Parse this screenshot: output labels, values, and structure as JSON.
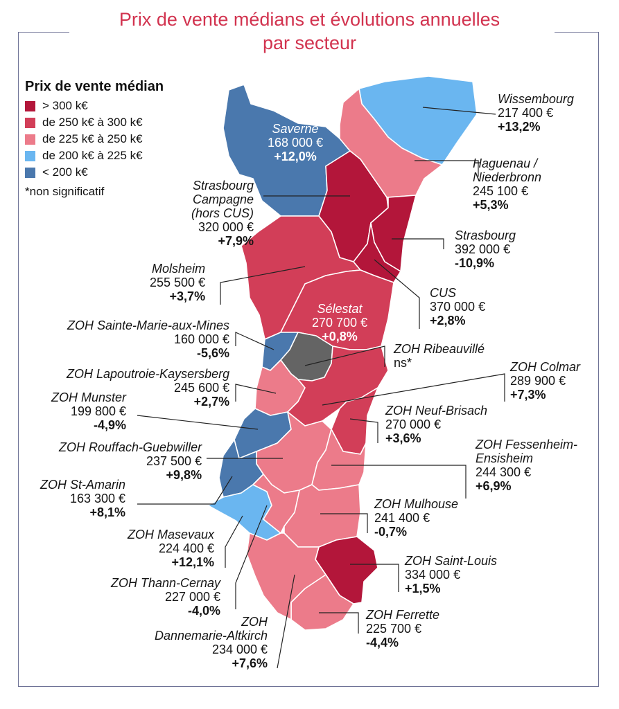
{
  "title": [
    "Prix de vente médians et évolutions annuelles",
    "par secteur"
  ],
  "legend": {
    "title": "Prix de vente médian",
    "items": [
      {
        "label": "> 300 k€",
        "color": "#b3163a"
      },
      {
        "label": "de 250 k€ à 300 k€",
        "color": "#d23e58"
      },
      {
        "label": "de 225 k€ à 250 k€",
        "color": "#ec7b8a"
      },
      {
        "label": "de 200 k€ à 225 k€",
        "color": "#6ab6f0"
      },
      {
        "label": "< 200 k€",
        "color": "#4a78ad"
      }
    ],
    "note": "*non significatif"
  },
  "colors": {
    "ns": "#646464",
    "border": "#ffffff",
    "leader": "#222222"
  },
  "sectors": [
    {
      "key": "saverne",
      "name": [
        "Saverne"
      ],
      "price": "168 000 €",
      "change": "+12,0%",
      "class": "< 200 k€"
    },
    {
      "key": "wissembourg",
      "name": [
        "Wissembourg"
      ],
      "price": "217 400 €",
      "change": "+13,2%",
      "class": "de 200 k€ à 225 k€"
    },
    {
      "key": "haguenau",
      "name": [
        "Haguenau /",
        "Niederbronn"
      ],
      "price": "245 100 €",
      "change": "+5,3%",
      "class": "de 225 k€ à 250 k€"
    },
    {
      "key": "strasbourg-campagne",
      "name": [
        "Strasbourg",
        "Campagne",
        "(hors CUS)"
      ],
      "price": "320 000 €",
      "change": "+7,9%",
      "class": "> 300 k€"
    },
    {
      "key": "strasbourg",
      "name": [
        "Strasbourg"
      ],
      "price": "392 000 €",
      "change": "-10,9%",
      "class": "> 300 k€"
    },
    {
      "key": "molsheim",
      "name": [
        "Molsheim"
      ],
      "price": "255 500 €",
      "change": "+3,7%",
      "class": "de 250 k€ à 300 k€"
    },
    {
      "key": "cus",
      "name": [
        "CUS"
      ],
      "price": "370 000 €",
      "change": "+2,8%",
      "class": "> 300 k€"
    },
    {
      "key": "selestat",
      "name": [
        "Sélestat"
      ],
      "price": "270 700 €",
      "change": "+0,8%",
      "class": "de 250 k€ à 300 k€"
    },
    {
      "key": "sainte-marie",
      "name": [
        "ZOH Sainte-Marie-aux-Mines"
      ],
      "price": "160 000 €",
      "change": "-5,6%",
      "class": "< 200 k€"
    },
    {
      "key": "ribeauville",
      "name": [
        "ZOH Ribeauvillé"
      ],
      "price": "ns*",
      "change": "",
      "class": "ns"
    },
    {
      "key": "lapoutroie",
      "name": [
        "ZOH Lapoutroie-Kaysersberg"
      ],
      "price": "245 600 €",
      "change": "+2,7%",
      "class": "de 225 k€ à 250 k€"
    },
    {
      "key": "colmar",
      "name": [
        "ZOH Colmar"
      ],
      "price": "289 900 €",
      "change": "+7,3%",
      "class": "de 250 k€ à 300 k€"
    },
    {
      "key": "munster",
      "name": [
        "ZOH Munster"
      ],
      "price": "199 800 €",
      "change": "-4,9%",
      "class": "< 200 k€"
    },
    {
      "key": "neuf-brisach",
      "name": [
        "ZOH Neuf-Brisach"
      ],
      "price": "270 000 €",
      "change": "+3,6%",
      "class": "de 250 k€ à 300 k€"
    },
    {
      "key": "rouffach",
      "name": [
        "ZOH Rouffach-Guebwiller"
      ],
      "price": "237 500 €",
      "change": "+9,8%",
      "class": "de 225 k€ à 250 k€"
    },
    {
      "key": "fessenheim",
      "name": [
        "ZOH Fessenheim-",
        "Ensisheim"
      ],
      "price": "244 300 €",
      "change": "+6,9%",
      "class": "de 225 k€ à 250 k€"
    },
    {
      "key": "st-amarin",
      "name": [
        "ZOH St-Amarin"
      ],
      "price": "163 300 €",
      "change": "+8,1%",
      "class": "< 200 k€"
    },
    {
      "key": "mulhouse",
      "name": [
        "ZOH Mulhouse"
      ],
      "price": "241 400 €",
      "change": "-0,7%",
      "class": "de 225 k€ à 250 k€"
    },
    {
      "key": "masevaux",
      "name": [
        "ZOH Masevaux"
      ],
      "price": "224 400 €",
      "change": "+12,1%",
      "class": "de 200 k€ à 225 k€"
    },
    {
      "key": "saint-louis",
      "name": [
        "ZOH Saint-Louis"
      ],
      "price": "334 000 €",
      "change": "+1,5%",
      "class": "> 300 k€"
    },
    {
      "key": "thann",
      "name": [
        "ZOH Thann-Cernay"
      ],
      "price": "227 000 €",
      "change": "-4,0%",
      "class": "de 225 k€ à 250 k€"
    },
    {
      "key": "ferrette",
      "name": [
        "ZOH Ferrette"
      ],
      "price": "225 700 €",
      "change": "-4,4%",
      "class": "de 225 k€ à 250 k€"
    },
    {
      "key": "dannemarie",
      "name": [
        "ZOH",
        "Dannemarie-Altkirch"
      ],
      "price": "234 000 €",
      "change": "+7,6%",
      "class": "de 225 k€ à 250 k€"
    }
  ]
}
